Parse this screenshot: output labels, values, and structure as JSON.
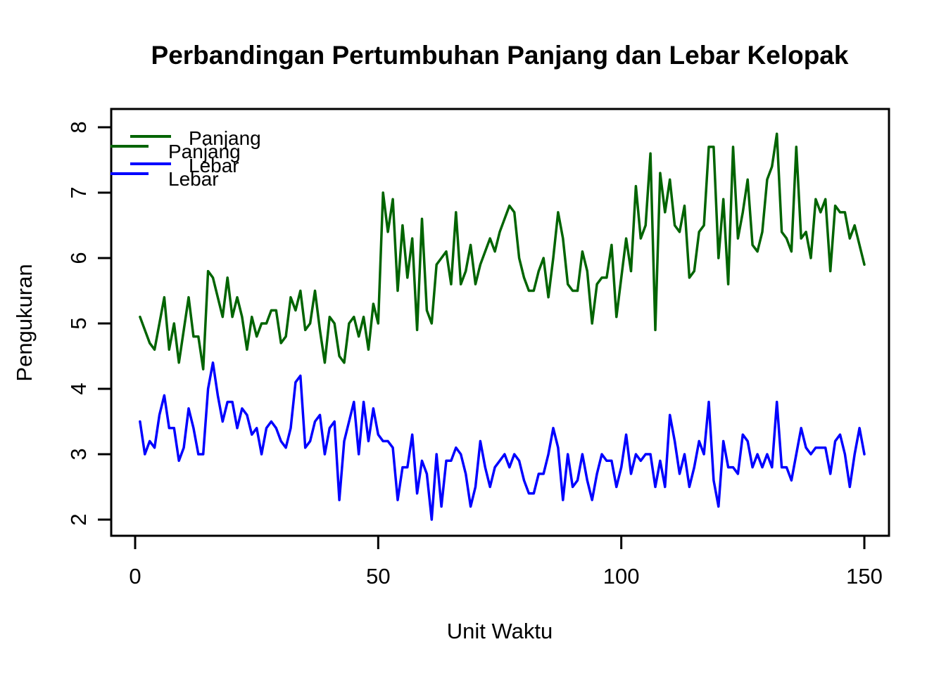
{
  "chart_data": {
    "type": "line",
    "title": "Perbandingan Pertumbuhan Panjang dan Lebar Kelopak",
    "xlabel": "Unit Waktu",
    "ylabel": "Pengukuran",
    "x_ticks": [
      0,
      50,
      100,
      150
    ],
    "y_ticks": [
      2,
      3,
      4,
      5,
      6,
      7,
      8
    ],
    "xlim": [
      -4.9,
      155.1
    ],
    "ylim": [
      1.76,
      8.28
    ],
    "grid": false,
    "background": "#ffffff",
    "x_start": 1,
    "x_step": 1,
    "legend": {
      "position": "topleft",
      "drawn_twice_overlapping": true,
      "entries": [
        {
          "label": "Panjang",
          "color": "#006400"
        },
        {
          "label": "Lebar",
          "color": "#0000FF"
        }
      ]
    },
    "series": [
      {
        "name": "Panjang",
        "color": "#006400",
        "values": [
          5.1,
          4.9,
          4.7,
          4.6,
          5.0,
          5.4,
          4.6,
          5.0,
          4.4,
          4.9,
          5.4,
          4.8,
          4.8,
          4.3,
          5.8,
          5.7,
          5.4,
          5.1,
          5.7,
          5.1,
          5.4,
          5.1,
          4.6,
          5.1,
          4.8,
          5.0,
          5.0,
          5.2,
          5.2,
          4.7,
          4.8,
          5.4,
          5.2,
          5.5,
          4.9,
          5.0,
          5.5,
          4.9,
          4.4,
          5.1,
          5.0,
          4.5,
          4.4,
          5.0,
          5.1,
          4.8,
          5.1,
          4.6,
          5.3,
          5.0,
          7.0,
          6.4,
          6.9,
          5.5,
          6.5,
          5.7,
          6.3,
          4.9,
          6.6,
          5.2,
          5.0,
          5.9,
          6.0,
          6.1,
          5.6,
          6.7,
          5.6,
          5.8,
          6.2,
          5.6,
          5.9,
          6.1,
          6.3,
          6.1,
          6.4,
          6.6,
          6.8,
          6.7,
          6.0,
          5.7,
          5.5,
          5.5,
          5.8,
          6.0,
          5.4,
          6.0,
          6.7,
          6.3,
          5.6,
          5.5,
          5.5,
          6.1,
          5.8,
          5.0,
          5.6,
          5.7,
          5.7,
          6.2,
          5.1,
          5.7,
          6.3,
          5.8,
          7.1,
          6.3,
          6.5,
          7.6,
          4.9,
          7.3,
          6.7,
          7.2,
          6.5,
          6.4,
          6.8,
          5.7,
          5.8,
          6.4,
          6.5,
          7.7,
          7.7,
          6.0,
          6.9,
          5.6,
          7.7,
          6.3,
          6.7,
          7.2,
          6.2,
          6.1,
          6.4,
          7.2,
          7.4,
          7.9,
          6.4,
          6.3,
          6.1,
          7.7,
          6.3,
          6.4,
          6.0,
          6.9,
          6.7,
          6.9,
          5.8,
          6.8,
          6.7,
          6.7,
          6.3,
          6.5,
          6.2,
          5.9
        ]
      },
      {
        "name": "Lebar",
        "color": "#0000FF",
        "values": [
          3.5,
          3.0,
          3.2,
          3.1,
          3.6,
          3.9,
          3.4,
          3.4,
          2.9,
          3.1,
          3.7,
          3.4,
          3.0,
          3.0,
          4.0,
          4.4,
          3.9,
          3.5,
          3.8,
          3.8,
          3.4,
          3.7,
          3.6,
          3.3,
          3.4,
          3.0,
          3.4,
          3.5,
          3.4,
          3.2,
          3.1,
          3.4,
          4.1,
          4.2,
          3.1,
          3.2,
          3.5,
          3.6,
          3.0,
          3.4,
          3.5,
          2.3,
          3.2,
          3.5,
          3.8,
          3.0,
          3.8,
          3.2,
          3.7,
          3.3,
          3.2,
          3.2,
          3.1,
          2.3,
          2.8,
          2.8,
          3.3,
          2.4,
          2.9,
          2.7,
          2.0,
          3.0,
          2.2,
          2.9,
          2.9,
          3.1,
          3.0,
          2.7,
          2.2,
          2.5,
          3.2,
          2.8,
          2.5,
          2.8,
          2.9,
          3.0,
          2.8,
          3.0,
          2.9,
          2.6,
          2.4,
          2.4,
          2.7,
          2.7,
          3.0,
          3.4,
          3.1,
          2.3,
          3.0,
          2.5,
          2.6,
          3.0,
          2.6,
          2.3,
          2.7,
          3.0,
          2.9,
          2.9,
          2.5,
          2.8,
          3.3,
          2.7,
          3.0,
          2.9,
          3.0,
          3.0,
          2.5,
          2.9,
          2.5,
          3.6,
          3.2,
          2.7,
          3.0,
          2.5,
          2.8,
          3.2,
          3.0,
          3.8,
          2.6,
          2.2,
          3.2,
          2.8,
          2.8,
          2.7,
          3.3,
          3.2,
          2.8,
          3.0,
          2.8,
          3.0,
          2.8,
          3.8,
          2.8,
          2.8,
          2.6,
          3.0,
          3.4,
          3.1,
          3.0,
          3.1,
          3.1,
          3.1,
          2.7,
          3.2,
          3.3,
          3.0,
          2.5,
          3.0,
          3.4,
          3.0
        ]
      }
    ]
  }
}
